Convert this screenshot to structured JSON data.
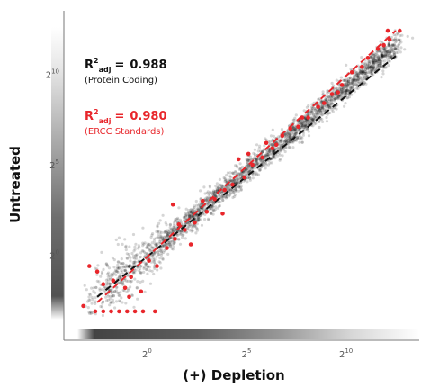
{
  "chart_data": {
    "type": "scatter",
    "xlabel": "(+) Depletion",
    "ylabel": "Untreated",
    "x_scale": "log2",
    "y_scale": "log2",
    "xlim_log2": [
      -3.5,
      13.5
    ],
    "ylim_log2": [
      -3.8,
      13.0
    ],
    "x_ticks": [
      {
        "base": "2",
        "exp": "0",
        "log2": 0
      },
      {
        "base": "2",
        "exp": "5",
        "log2": 5
      },
      {
        "base": "2",
        "exp": "10",
        "log2": 10
      }
    ],
    "y_ticks": [
      {
        "base": "2",
        "exp": "0",
        "log2": 0
      },
      {
        "base": "2",
        "exp": "5",
        "log2": 5
      },
      {
        "base": "2",
        "exp": "10",
        "log2": 10
      }
    ],
    "grid": false,
    "series": [
      {
        "name": "Protein Coding",
        "color": "#111111",
        "fit_line_log2": [
          [
            -2.5,
            -2.3
          ],
          [
            12.5,
            11.0
          ]
        ],
        "r2_adj": "0.988"
      },
      {
        "name": "ERCC Standards",
        "color": "#e8262b",
        "fit_line_log2": [
          [
            -2.5,
            -2.6
          ],
          [
            12.5,
            12.4
          ]
        ],
        "r2_adj": "0.980",
        "points_log2": [
          [
            -3.2,
            -2.8
          ],
          [
            -2.6,
            -3.1
          ],
          [
            -2.2,
            -3.1
          ],
          [
            -1.8,
            -3.1
          ],
          [
            -1.4,
            -3.1
          ],
          [
            -1.0,
            -3.1
          ],
          [
            -0.6,
            -3.1
          ],
          [
            -0.2,
            -3.1
          ],
          [
            0.4,
            -3.1
          ],
          [
            -2.9,
            -0.6
          ],
          [
            -2.5,
            -0.9
          ],
          [
            -1.7,
            -1.4
          ],
          [
            -0.9,
            -2.3
          ],
          [
            -2.2,
            -1.6
          ],
          [
            -1.1,
            -1.8
          ],
          [
            -0.3,
            -2.0
          ],
          [
            0.5,
            -0.6
          ],
          [
            1.0,
            0.4
          ],
          [
            1.4,
            0.9
          ],
          [
            1.9,
            1.4
          ],
          [
            2.4,
            1.8
          ],
          [
            3.0,
            2.4
          ],
          [
            3.4,
            3.1
          ],
          [
            3.9,
            3.6
          ],
          [
            4.3,
            3.9
          ],
          [
            4.9,
            4.3
          ],
          [
            5.3,
            5.0
          ],
          [
            5.8,
            5.4
          ],
          [
            6.3,
            5.9
          ],
          [
            6.8,
            6.6
          ],
          [
            7.2,
            7.0
          ],
          [
            7.6,
            7.1
          ],
          [
            8.1,
            7.6
          ],
          [
            8.6,
            8.2
          ],
          [
            9.3,
            8.9
          ],
          [
            9.8,
            9.4
          ],
          [
            10.3,
            10.1
          ],
          [
            11.1,
            10.9
          ],
          [
            11.6,
            11.4
          ],
          [
            12.1,
            12.4
          ],
          [
            12.7,
            12.4
          ],
          [
            12.2,
            11.9
          ],
          [
            1.3,
            2.8
          ],
          [
            2.2,
            0.6
          ],
          [
            3.8,
            2.3
          ],
          [
            4.6,
            5.3
          ],
          [
            6.0,
            6.2
          ],
          [
            7.8,
            7.6
          ],
          [
            8.9,
            8.4
          ],
          [
            10.8,
            10.4
          ],
          [
            -0.8,
            -1.2
          ],
          [
            0.1,
            -0.3
          ],
          [
            1.6,
            1.7
          ],
          [
            2.8,
            3.0
          ],
          [
            5.1,
            5.6
          ],
          [
            6.5,
            6.1
          ],
          [
            9.6,
            9.0
          ],
          [
            11.9,
            11.6
          ]
        ]
      }
    ],
    "annotations": [
      {
        "r2_label": "R",
        "r2_sup": "2",
        "r2_sub": "adj",
        "equals": "=",
        "value": "0.988",
        "sub": "(Protein Coding)",
        "color": "#111111"
      },
      {
        "r2_label": "R",
        "r2_sup": "2",
        "r2_sub": "adj",
        "equals": "=",
        "value": "0.980",
        "sub": "(ERCC Standards)",
        "color": "#e8262b"
      }
    ]
  }
}
